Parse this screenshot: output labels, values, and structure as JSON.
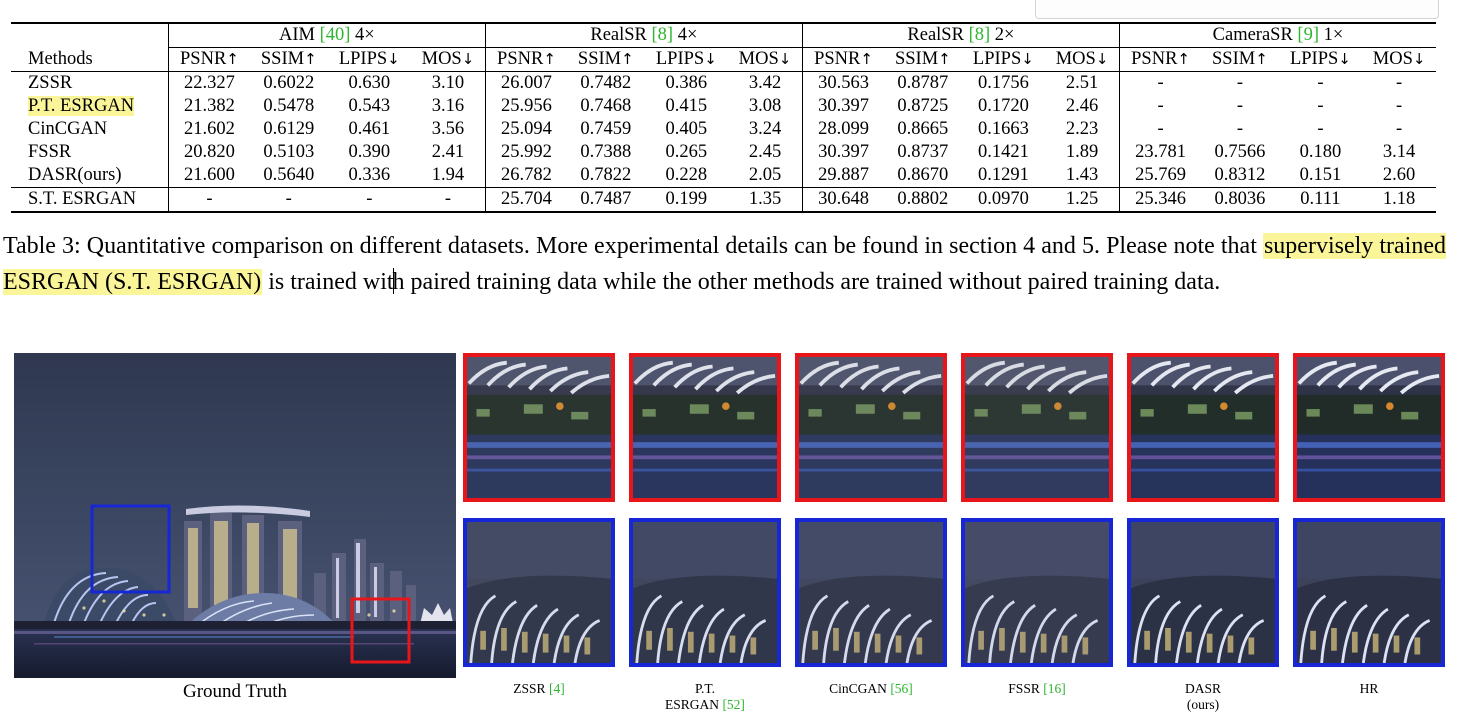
{
  "table": {
    "methods_header": "Methods",
    "groups": [
      {
        "name": "AIM",
        "cite": "[40]",
        "scale": "4×"
      },
      {
        "name": "RealSR",
        "cite": "[8]",
        "scale": "4×"
      },
      {
        "name": "RealSR",
        "cite": "[8]",
        "scale": "2×"
      },
      {
        "name": "CameraSR",
        "cite": "[9]",
        "scale": "1×"
      }
    ],
    "metrics": [
      "PSNR",
      "SSIM",
      "LPIPS",
      "MOS"
    ],
    "arrows": [
      "↑",
      "↑",
      "↓",
      "↓"
    ],
    "rows": [
      {
        "method": "ZSSR",
        "values": [
          "22.327",
          "0.6022",
          "0.630",
          "3.10",
          "26.007",
          "0.7482",
          "0.386",
          "3.42",
          "30.563",
          "0.8787",
          "0.1756",
          "2.51",
          "-",
          "-",
          "-",
          "-"
        ]
      },
      {
        "method": "P.T. ESRGAN",
        "highlight": true,
        "values": [
          "21.382",
          "0.5478",
          "0.543",
          "3.16",
          "25.956",
          "0.7468",
          "0.415",
          "3.08",
          "30.397",
          "0.8725",
          "0.1720",
          "2.46",
          "-",
          "-",
          "-",
          "-"
        ]
      },
      {
        "method": "CinCGAN",
        "values": [
          "21.602",
          "0.6129",
          "0.461",
          "3.56",
          "25.094",
          "0.7459",
          "0.405",
          "3.24",
          "28.099",
          "0.8665",
          "0.1663",
          "2.23",
          "-",
          "-",
          "-",
          "-"
        ]
      },
      {
        "method": "FSSR",
        "values": [
          "20.820",
          "0.5103",
          "0.390",
          "2.41",
          "25.992",
          "0.7388",
          "0.265",
          "2.45",
          "30.397",
          "0.8737",
          "0.1421",
          "1.89",
          "23.781",
          "0.7566",
          "0.180",
          "3.14"
        ]
      },
      {
        "method": "DASR(ours)",
        "values": [
          "21.600",
          "0.5640",
          "0.336",
          "1.94",
          "26.782",
          "0.7822",
          "0.228",
          "2.05",
          "29.887",
          "0.8670",
          "0.1291",
          "1.43",
          "25.769",
          "0.8312",
          "0.151",
          "2.60"
        ]
      },
      {
        "method": "S.T. ESRGAN",
        "values": [
          "-",
          "-",
          "-",
          "-",
          "25.704",
          "0.7487",
          "0.199",
          "1.35",
          "30.648",
          "0.8802",
          "0.0970",
          "1.25",
          "25.346",
          "0.8036",
          "0.111",
          "1.18"
        ]
      }
    ]
  },
  "caption": {
    "part1": "Table 3: Quantitative comparison on different datasets. More experimental details can be found in section 4 and 5. Please note that ",
    "highlight": "supervisely trained ESRGAN (S.T. ESRGAN)",
    "part2a": " is trained wit",
    "part2b": "h paired training data while the other methods are trained without paired training data."
  },
  "figure": {
    "gt_label": "Ground Truth",
    "crops": [
      {
        "label": "ZSSR",
        "cite": "[4]",
        "sub": ""
      },
      {
        "label": "P.T.",
        "cite": "",
        "sub": "ESRGAN",
        "subcite": "[52]"
      },
      {
        "label": "CinCGAN",
        "cite": "[56]",
        "sub": ""
      },
      {
        "label": "FSSR",
        "cite": "[16]",
        "sub": ""
      },
      {
        "label": "DASR",
        "cite": "",
        "sub": "(ours)"
      },
      {
        "label": "HR",
        "cite": "",
        "sub": ""
      }
    ],
    "colors": {
      "red_box": "#e8161b",
      "blue_box": "#1727d6",
      "cite_green": "#2fb52f",
      "highlight": "#fbf59a"
    }
  }
}
